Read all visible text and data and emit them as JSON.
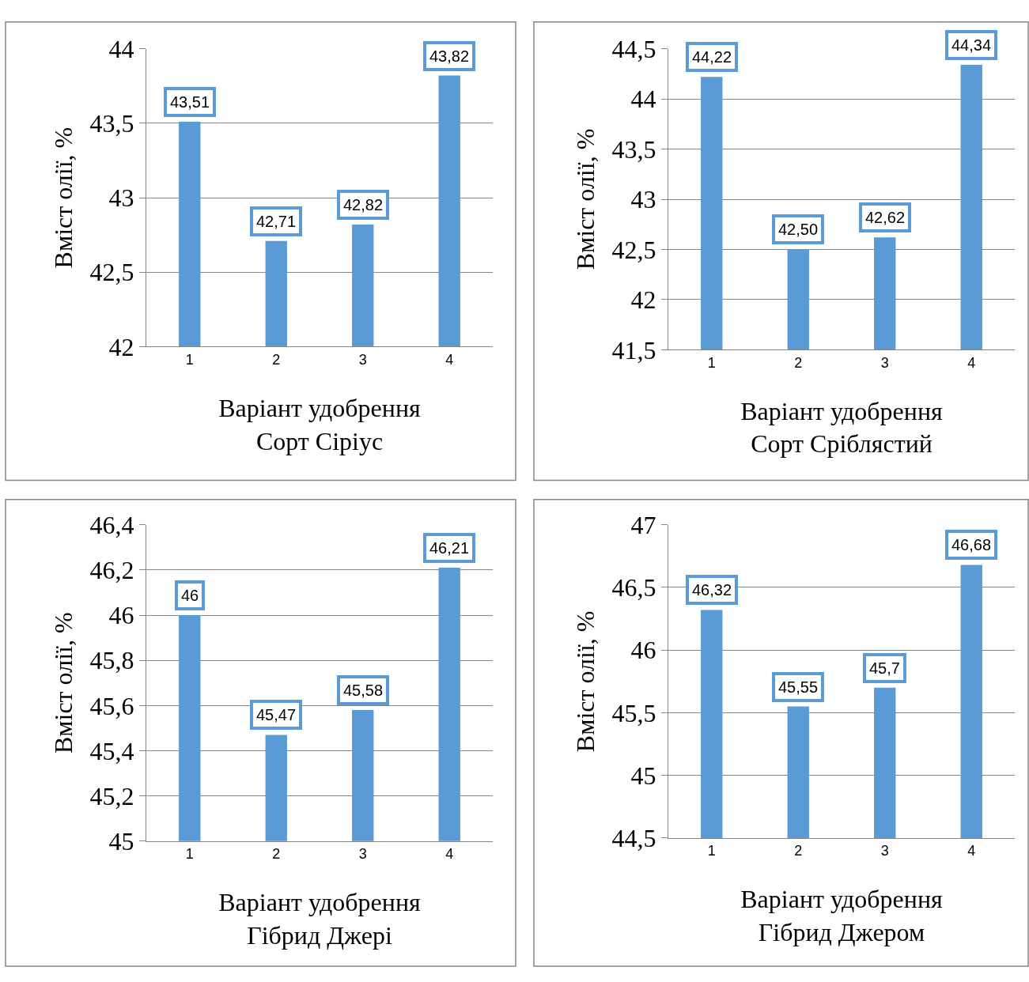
{
  "chart_data": [
    {
      "type": "bar",
      "categories": [
        "1",
        "2",
        "3",
        "4"
      ],
      "values": [
        43.51,
        42.71,
        42.82,
        43.82
      ],
      "value_labels": [
        "43,51",
        "42,71",
        "42,82",
        "43,82"
      ],
      "color": "#5b9bd5",
      "ylim": [
        42,
        44
      ],
      "yticks": [
        42,
        {
          "value": 42.5,
          "label": "42,5"
        },
        43,
        {
          "value": 43.5,
          "label": "43,5"
        },
        44
      ],
      "grid": "y",
      "xlabel": "Варіант удобрення\nСорт Сіріус",
      "ylabel": "Вміст олії, %"
    },
    {
      "type": "bar",
      "categories": [
        "1",
        "2",
        "3",
        "4"
      ],
      "values": [
        44.22,
        42.5,
        42.62,
        44.34
      ],
      "value_labels": [
        "44,22",
        "42,50",
        "42,62",
        "44,34"
      ],
      "color": "#5b9bd5",
      "ylim": [
        41.5,
        44.5
      ],
      "yticks": [
        {
          "value": 41.5,
          "label": "41,5"
        },
        42,
        {
          "value": 42.5,
          "label": "42,5"
        },
        43,
        {
          "value": 43.5,
          "label": "43,5"
        },
        44,
        {
          "value": 44.5,
          "label": "44,5"
        }
      ],
      "grid": "y",
      "xlabel": "Варіант удобрення\nСорт Сріблястий",
      "ylabel": "Вміст олії, %"
    },
    {
      "type": "bar",
      "categories": [
        "1",
        "2",
        "3",
        "4"
      ],
      "values": [
        46,
        45.47,
        45.58,
        46.21
      ],
      "value_labels": [
        "46",
        "45,47",
        "45,58",
        "46,21"
      ],
      "color": "#5b9bd5",
      "ylim": [
        45,
        46.4
      ],
      "yticks": [
        45,
        {
          "value": 45.2,
          "label": "45,2"
        },
        {
          "value": 45.4,
          "label": "45,4"
        },
        {
          "value": 45.6,
          "label": "45,6"
        },
        {
          "value": 45.8,
          "label": "45,8"
        },
        46,
        {
          "value": 46.2,
          "label": "46,2"
        },
        {
          "value": 46.4,
          "label": "46,4"
        }
      ],
      "grid": "y",
      "xlabel": "Варіант удобрення\nГібрид Джері",
      "ylabel": "Вміст олії, %"
    },
    {
      "type": "bar",
      "categories": [
        "1",
        "2",
        "3",
        "4"
      ],
      "values": [
        46.32,
        45.55,
        45.7,
        46.68
      ],
      "value_labels": [
        "46,32",
        "45,55",
        "45,7",
        "46,68"
      ],
      "color": "#5b9bd5",
      "ylim": [
        44.5,
        47
      ],
      "yticks": [
        {
          "value": 44.5,
          "label": "44,5"
        },
        45,
        {
          "value": 45.5,
          "label": "45,5"
        },
        46,
        {
          "value": 46.5,
          "label": "46,5"
        },
        47
      ],
      "grid": "y",
      "xlabel": "Варіант удобрення\nГібрид Джером",
      "ylabel": "Вміст олії, %"
    }
  ]
}
